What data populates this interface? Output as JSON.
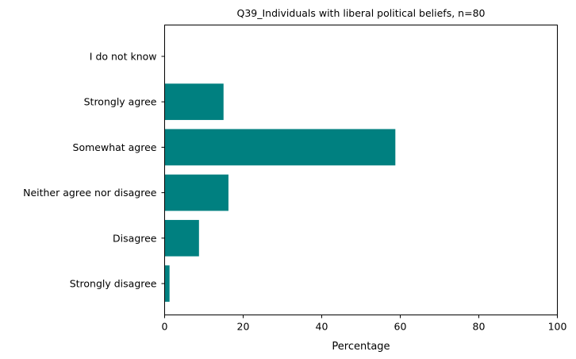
{
  "chart_data": {
    "type": "bar",
    "orientation": "horizontal",
    "title": "Q39_Individuals with liberal political beliefs, n=80",
    "xlabel": "Percentage",
    "ylabel": "",
    "categories": [
      "Strongly disagree",
      "Disagree",
      "Neither agree nor disagree",
      "Somewhat agree",
      "Strongly agree",
      "I do not know"
    ],
    "values": [
      1.25,
      8.75,
      16.25,
      58.75,
      15.0,
      0.0
    ],
    "xlim": [
      0,
      100
    ],
    "xticks": [
      "0",
      "20",
      "40",
      "60",
      "80",
      "100"
    ],
    "bar_color": "#008080",
    "grid": false,
    "legend": "none"
  }
}
